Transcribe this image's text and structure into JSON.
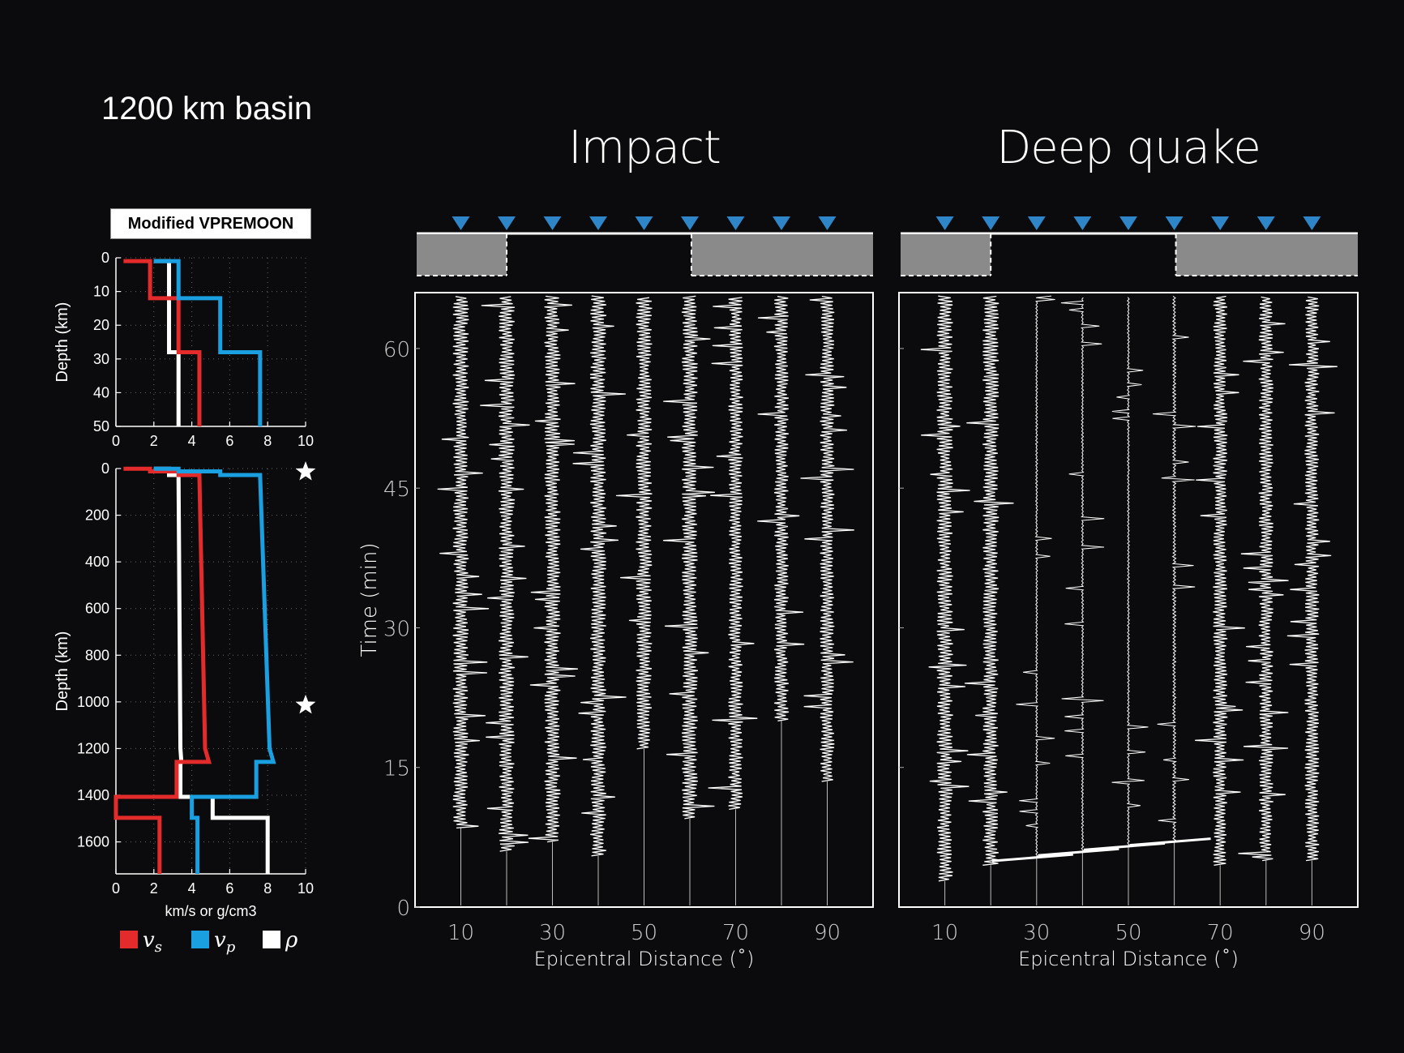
{
  "figure_title": "1200 km basin",
  "model_label": "Modified VPREMOON",
  "colors": {
    "vs": "#e32b2b",
    "vp": "#1aa0e0",
    "rho": "#ffffff",
    "station": "#2e86c8",
    "basin_fill": "#8a8a8a"
  },
  "chart_data": [
    {
      "type": "line",
      "name": "Shallow velocity profile",
      "ylabel": "Depth (km)",
      "xlim": [
        0,
        10
      ],
      "ylim": [
        0,
        50
      ],
      "x_ticks": [
        "0",
        "2",
        "4",
        "6",
        "8",
        "10"
      ],
      "y_ticks": [
        "0",
        "10",
        "20",
        "30",
        "40",
        "50"
      ],
      "y_inverted": true,
      "grid": true,
      "series": [
        {
          "key": "vs",
          "points": [
            [
              0.4,
              1
            ],
            [
              1.8,
              1
            ],
            [
              1.8,
              12
            ],
            [
              3.3,
              12
            ],
            [
              3.3,
              28
            ],
            [
              4.4,
              28
            ],
            [
              4.4,
              50
            ]
          ]
        },
        {
          "key": "vp",
          "points": [
            [
              2.0,
              1
            ],
            [
              3.3,
              1
            ],
            [
              3.3,
              12
            ],
            [
              5.5,
              12
            ],
            [
              5.5,
              28
            ],
            [
              7.6,
              28
            ],
            [
              7.6,
              50
            ]
          ]
        },
        {
          "key": "rho",
          "points": [
            [
              2.0,
              1
            ],
            [
              2.8,
              1
            ],
            [
              2.8,
              28
            ],
            [
              3.3,
              28
            ],
            [
              3.3,
              50
            ]
          ]
        }
      ]
    },
    {
      "type": "line",
      "name": "Deep velocity profile",
      "ylabel": "Depth (km)",
      "xlabel": "km/s or g/cm3",
      "xlim": [
        0,
        10
      ],
      "ylim": [
        0,
        1737
      ],
      "x_ticks": [
        "0",
        "2",
        "4",
        "6",
        "8",
        "10"
      ],
      "y_ticks": [
        "0",
        "200",
        "400",
        "600",
        "800",
        "1000",
        "1200",
        "1400",
        "1600"
      ],
      "y_inverted": true,
      "grid": true,
      "source_markers_depth_km": [
        0,
        1000
      ],
      "series": [
        {
          "key": "vs",
          "points": [
            [
              0.4,
              1
            ],
            [
              1.8,
              1
            ],
            [
              1.8,
              12
            ],
            [
              3.3,
              12
            ],
            [
              3.3,
              28
            ],
            [
              4.4,
              28
            ],
            [
              4.7,
              1200
            ],
            [
              4.9,
              1257
            ],
            [
              3.2,
              1257
            ],
            [
              3.2,
              1407
            ],
            [
              0,
              1407
            ],
            [
              0,
              1497
            ],
            [
              2.3,
              1497
            ],
            [
              2.3,
              1737
            ]
          ]
        },
        {
          "key": "vp",
          "points": [
            [
              2.0,
              1
            ],
            [
              3.3,
              1
            ],
            [
              3.3,
              12
            ],
            [
              5.5,
              12
            ],
            [
              5.5,
              28
            ],
            [
              7.6,
              28
            ],
            [
              8.1,
              1200
            ],
            [
              8.3,
              1257
            ],
            [
              7.4,
              1257
            ],
            [
              7.4,
              1407
            ],
            [
              4.0,
              1407
            ],
            [
              4.0,
              1497
            ],
            [
              4.3,
              1497
            ],
            [
              4.3,
              1737
            ]
          ]
        },
        {
          "key": "rho",
          "points": [
            [
              2.0,
              1
            ],
            [
              2.8,
              1
            ],
            [
              2.8,
              28
            ],
            [
              3.3,
              28
            ],
            [
              3.4,
              1200
            ],
            [
              3.45,
              1257
            ],
            [
              3.4,
              1257
            ],
            [
              3.4,
              1407
            ],
            [
              5.1,
              1407
            ],
            [
              5.1,
              1497
            ],
            [
              8.0,
              1497
            ],
            [
              8.0,
              1737
            ]
          ]
        }
      ]
    },
    {
      "type": "line",
      "name": "Impact",
      "title": "Impact",
      "xlabel": "Epicentral Distance (˚)",
      "ylabel": "Time (min)",
      "xlim": [
        0,
        100
      ],
      "ylim": [
        0,
        66
      ],
      "x_ticks": [
        "10",
        "30",
        "50",
        "70",
        "90"
      ],
      "y_ticks": [
        "0",
        "15",
        "30",
        "45",
        "60"
      ],
      "stations_deg": [
        10,
        20,
        30,
        40,
        50,
        60,
        70,
        80,
        90
      ],
      "basin_shaded_ranges_deg": [
        [
          0,
          20
        ],
        [
          60,
          100
        ]
      ],
      "traces": [
        {
          "distance": 10,
          "onset_min": 8.5,
          "amplitude": 1.0
        },
        {
          "distance": 20,
          "onset_min": 6.0,
          "amplitude": 1.0
        },
        {
          "distance": 30,
          "onset_min": 7.0,
          "amplitude": 1.0
        },
        {
          "distance": 40,
          "onset_min": 5.5,
          "amplitude": 1.0
        },
        {
          "distance": 50,
          "onset_min": 17.0,
          "amplitude": 1.0
        },
        {
          "distance": 60,
          "onset_min": 9.5,
          "amplitude": 1.0
        },
        {
          "distance": 70,
          "onset_min": 10.5,
          "amplitude": 0.9
        },
        {
          "distance": 80,
          "onset_min": 20.0,
          "amplitude": 0.9
        },
        {
          "distance": 90,
          "onset_min": 13.5,
          "amplitude": 0.9
        }
      ]
    },
    {
      "type": "line",
      "name": "Deep quake",
      "title": "Deep quake",
      "xlabel": "Epicentral Distance (˚)",
      "xlim": [
        0,
        100
      ],
      "ylim": [
        0,
        66
      ],
      "x_ticks": [
        "10",
        "30",
        "50",
        "70",
        "90"
      ],
      "y_ticks": [
        "15",
        "30",
        "45",
        "60"
      ],
      "stations_deg": [
        10,
        20,
        30,
        40,
        50,
        60,
        70,
        80,
        90
      ],
      "basin_shaded_ranges_deg": [
        [
          0,
          20
        ],
        [
          60,
          100
        ]
      ],
      "traces": [
        {
          "distance": 10,
          "onset_min": 2.8,
          "amplitude": 1.0
        },
        {
          "distance": 20,
          "onset_min": 4.5,
          "amplitude": 1.0
        },
        {
          "distance": 30,
          "onset_min": 5.3,
          "amplitude": 0.12
        },
        {
          "distance": 40,
          "onset_min": 5.9,
          "amplitude": 0.12
        },
        {
          "distance": 50,
          "onset_min": 6.5,
          "amplitude": 0.12
        },
        {
          "distance": 60,
          "onset_min": 7.0,
          "amplitude": 0.2
        },
        {
          "distance": 70,
          "onset_min": 4.5,
          "amplitude": 0.9
        },
        {
          "distance": 80,
          "onset_min": 5.0,
          "amplitude": 0.9
        },
        {
          "distance": 90,
          "onset_min": 5.0,
          "amplitude": 0.9
        }
      ]
    }
  ],
  "legend": [
    {
      "key": "vs",
      "label": "v",
      "sub": "s"
    },
    {
      "key": "vp",
      "label": "v",
      "sub": "p"
    },
    {
      "key": "rho",
      "label": "ρ",
      "sub": ""
    }
  ]
}
